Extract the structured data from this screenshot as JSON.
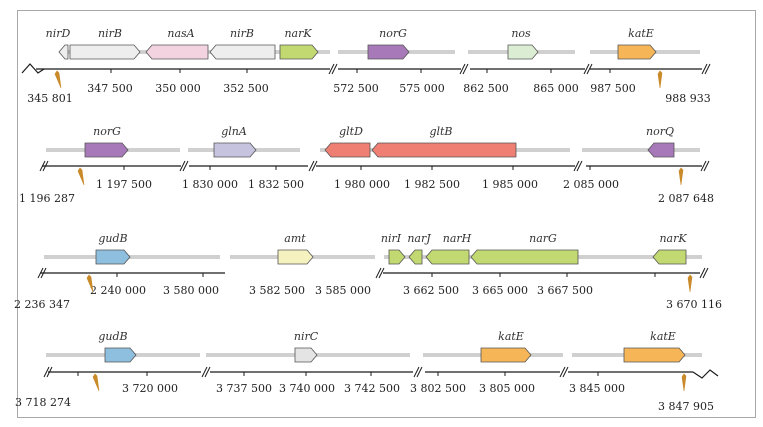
{
  "figure": {
    "description_labels": []
  },
  "colors": {
    "frame": "#a8a8a8",
    "track": "#d0d0d0",
    "axis": "#1a1a1a",
    "marker": "#c98a2a",
    "white_gene": "#eeeeee",
    "pink_gene": "#f3d3df",
    "light_green_gene": "#dbeed3",
    "purple_gene": "#a779b8",
    "lavender_gene": "#c5c3de",
    "salmon_gene": "#ee7f72",
    "orange_gene": "#f6b556",
    "blue_gene": "#8fbfdf",
    "cream_gene": "#f6f2c0",
    "lime_gene": "#c1d970",
    "light_gray_gene": "#e4e4e4"
  },
  "rows": [
    {
      "name": "row-1",
      "genes": [
        "nirD",
        "nirB",
        "nasA",
        "nirB",
        "narK",
        "norG",
        "nos",
        "katE"
      ],
      "coordinates": [
        "345 801",
        "347 500",
        "350 000",
        "352 500",
        "572 500",
        "575 000",
        "862 500",
        "865 000",
        "987 500",
        "988 933"
      ]
    },
    {
      "name": "row-2",
      "genes": [
        "norG",
        "glnA",
        "gltD",
        "gltB",
        "norQ"
      ],
      "coordinates": [
        "1 196 287",
        "1 197 500",
        "1 830 000",
        "1 832 500",
        "1 980 000",
        "1 982 500",
        "1 985 000",
        "2 085 000",
        "2 087 648"
      ]
    },
    {
      "name": "row-3",
      "genes": [
        "gudB",
        "amt",
        "nirI",
        "narJ",
        "narH",
        "narG",
        "narK"
      ],
      "coordinates": [
        "2 236 347",
        "2 240 000",
        "3 580 000",
        "3 582 500",
        "3 585 000",
        "3 662 500",
        "3 665 000",
        "3 667 500",
        "3 670 116"
      ]
    },
    {
      "name": "row-4",
      "genes": [
        "gudB",
        "nirC",
        "katE",
        "katE"
      ],
      "coordinates": [
        "3 718 274",
        "3 720 000",
        "3 737 500",
        "3 740 000",
        "3 742 500",
        "3 802 500",
        "3 805 000",
        "3 845 000",
        "3 847 905"
      ]
    }
  ]
}
